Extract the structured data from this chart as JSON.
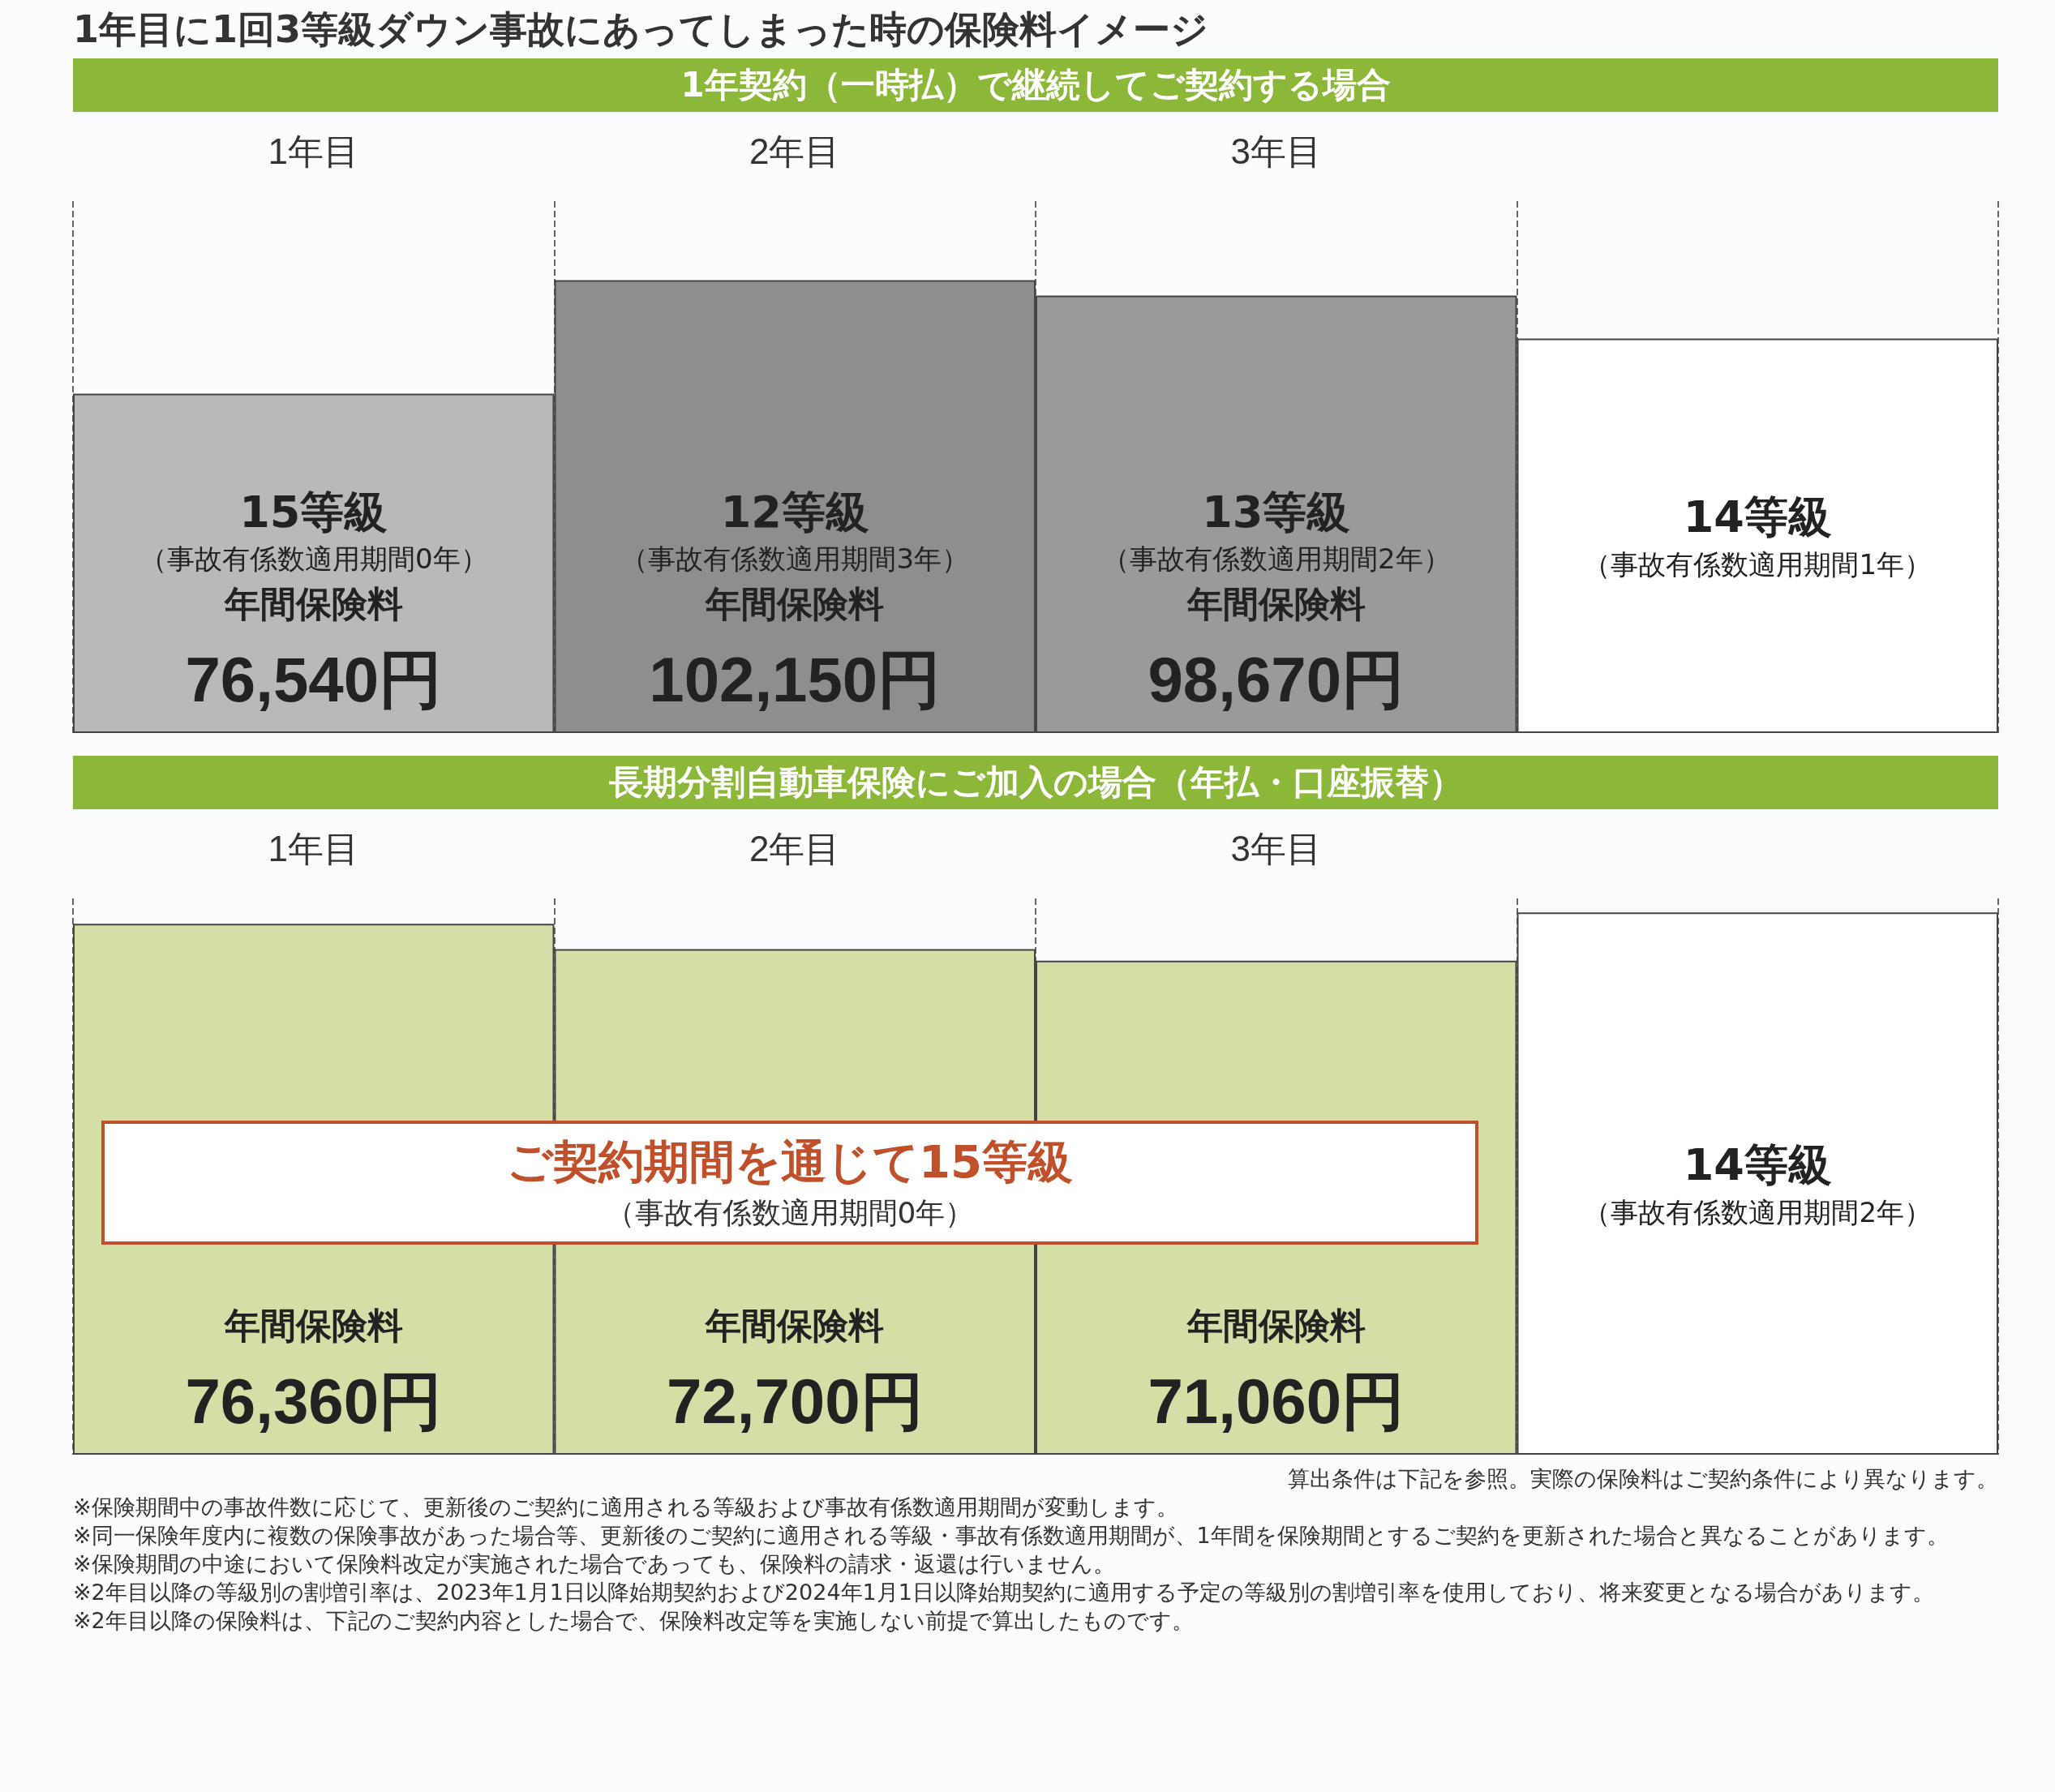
{
  "chart_data": [
    {
      "type": "bar",
      "title": "1年目に1回3等級ダウン事故にあってしまった時の保険料イメージ",
      "subtitle": "1年契約（一時払）で継続してご契約する場合",
      "categories": [
        "1年目",
        "2年目",
        "3年目",
        null
      ],
      "values": [
        76540,
        102150,
        98670,
        89000
      ],
      "colors": [
        "#b9b9b9",
        "#8e8e8e",
        "#9a9a9a",
        "#ffffff"
      ],
      "value_labels": [
        "76,540円",
        "102,150円",
        "98,670円",
        null
      ],
      "grid": "x",
      "annotations": [
        "15等級",
        "（事故有係数適用期間0年）",
        "年間保険料",
        "12等級",
        "（事故有係数適用期間3年）",
        "年間保険料",
        "13等級",
        "（事故有係数適用期間2年）",
        "年間保険料",
        "14等級",
        "（事故有係数適用期間1年）"
      ]
    },
    {
      "type": "bar",
      "subtitle": "長期分割自動車保険にご加入の場合（年払・口座振替）",
      "categories": [
        "1年目",
        "2年目",
        "3年目",
        null
      ],
      "values": [
        76360,
        72700,
        71060,
        78000
      ],
      "colors": [
        "#d3dfa6",
        "#d3dfa6",
        "#d3dfa6",
        "#ffffff"
      ],
      "value_labels": [
        "76,360円",
        "72,700円",
        "71,060円",
        null
      ],
      "grid": "x",
      "annotations": [
        "年間保険料",
        "年間保険料",
        "年間保険料",
        "14等級",
        "（事故有係数適用期間2年）",
        "ご契約期間を通じて15等級",
        "（事故有係数適用期間0年）",
        "算出条件は下記を参照。実際の保険料はご契約条件により異なります。",
        "※保険期間中の事故件数に応じて、更新後のご契約に適用される等級および事故有係数適用期間が変動します。",
        "※同一保険年度内に複数の保険事故があった場合等、更新後のご契約に適用される等級・事故有係数適用期間が、1年間を保険期間とするご契約を更新された場合と異なることがあります。",
        "※保険期間の中途において保険料改定が実施された場合であっても、保険料の請求・返還は行いません。",
        "※2年目以降の等級別の割増引率は、2023年1月1日以降始期契約および2024年1月1日以降始期契約に適用する予定の等級別の割増引率を使用しており、将来変更となる場合があります。",
        "※2年目以降の保険料は、下記のご契約内容とした場合で、保険料改定等を実施しない前提で算出したものです。"
      ]
    }
  ]
}
